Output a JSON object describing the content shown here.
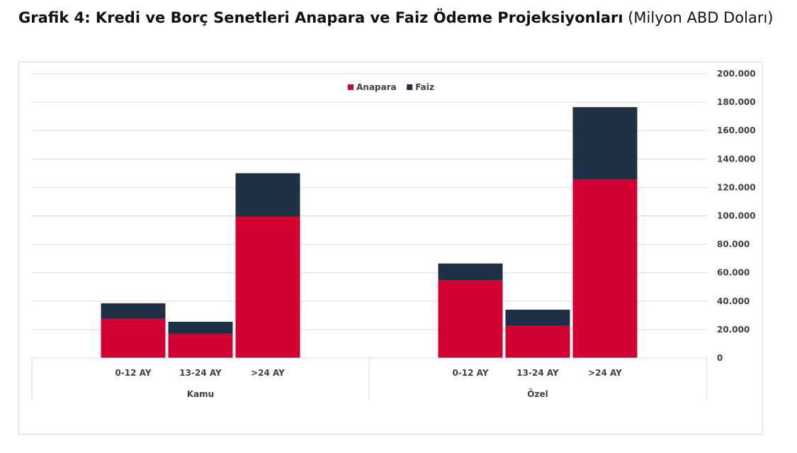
{
  "title": {
    "bold": "Grafik 4: Kredi ve Borç Senetleri Anapara ve Faiz Ödeme Projeksiyonları",
    "normal": "(Milyon ABD Doları)"
  },
  "chart_data": {
    "type": "bar",
    "stacked": true,
    "groups": [
      "Kamu",
      "Özel"
    ],
    "categories": [
      "0-12 AY",
      "13-24 AY",
      ">24 AY"
    ],
    "series": [
      {
        "name": "Anapara",
        "color": "#d20030",
        "values": [
          [
            27500,
            17000,
            99500
          ],
          [
            54500,
            22500,
            125500
          ]
        ]
      },
      {
        "name": "Faiz",
        "color": "#1f3044",
        "values": [
          [
            11000,
            8500,
            30500
          ],
          [
            12000,
            11500,
            51000
          ]
        ]
      }
    ],
    "yaxis": {
      "position": "right",
      "ylim": [
        0,
        200000
      ],
      "ticks": [
        "0",
        "20.000",
        "40.000",
        "60.000",
        "80.000",
        "100.000",
        "120.000",
        "140.000",
        "160.000",
        "180.000",
        "200.000"
      ]
    },
    "grid": true,
    "legend": "top-center"
  }
}
